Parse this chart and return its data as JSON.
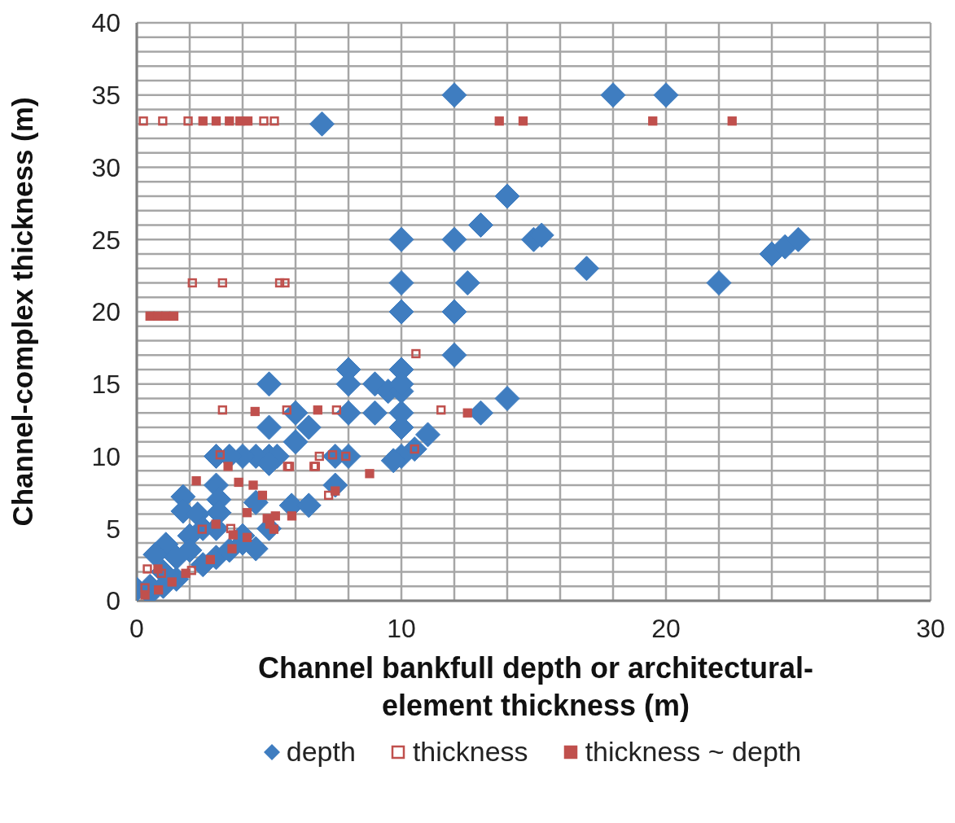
{
  "chart_data": {
    "type": "scatter",
    "xlabel": "Channel bankfull depth or architectural-element thickness (m)",
    "ylabel": "Channel-complex thickness (m)",
    "xlim": [
      0,
      30
    ],
    "ylim": [
      0,
      40
    ],
    "xticks": [
      0,
      {
        "value": 2,
        "label": null
      },
      {
        "value": 4,
        "label": null
      },
      {
        "value": 6,
        "label": null
      },
      {
        "value": 8,
        "label": null
      },
      10,
      {
        "value": 12,
        "label": null
      },
      {
        "value": 14,
        "label": null
      },
      {
        "value": 16,
        "label": null
      },
      {
        "value": 18,
        "label": null
      },
      20,
      {
        "value": 22,
        "label": null
      },
      {
        "value": 24,
        "label": null
      },
      {
        "value": 26,
        "label": null
      },
      {
        "value": 28,
        "label": null
      },
      30
    ],
    "yticks": [
      0,
      {
        "value": 1,
        "label": null
      },
      {
        "value": 2,
        "label": null
      },
      {
        "value": 3,
        "label": null
      },
      {
        "value": 4,
        "label": null
      },
      5,
      {
        "value": 6,
        "label": null
      },
      {
        "value": 7,
        "label": null
      },
      {
        "value": 8,
        "label": null
      },
      {
        "value": 9,
        "label": null
      },
      10,
      {
        "value": 11,
        "label": null
      },
      {
        "value": 12,
        "label": null
      },
      {
        "value": 13,
        "label": null
      },
      {
        "value": 14,
        "label": null
      },
      15,
      {
        "value": 16,
        "label": null
      },
      {
        "value": 17,
        "label": null
      },
      {
        "value": 18,
        "label": null
      },
      {
        "value": 19,
        "label": null
      },
      20,
      {
        "value": 21,
        "label": null
      },
      {
        "value": 22,
        "label": null
      },
      {
        "value": 23,
        "label": null
      },
      {
        "value": 24,
        "label": null
      },
      25,
      {
        "value": 26,
        "label": null
      },
      {
        "value": 27,
        "label": null
      },
      {
        "value": 28,
        "label": null
      },
      {
        "value": 29,
        "label": null
      },
      30,
      {
        "value": 31,
        "label": null
      },
      {
        "value": 32,
        "label": null
      },
      {
        "value": 33,
        "label": null
      },
      {
        "value": 34,
        "label": null
      },
      35,
      {
        "value": 36,
        "label": null
      },
      {
        "value": 37,
        "label": null
      },
      {
        "value": 38,
        "label": null
      },
      {
        "value": 39,
        "label": null
      },
      40
    ],
    "grid": true,
    "legend": "bottom",
    "series": [
      {
        "name": "depth",
        "color": "#3f7dc0",
        "marker": "diamond",
        "x": [
          7,
          12,
          18,
          20,
          14,
          13,
          15,
          15.3,
          10,
          12,
          12.5,
          10,
          17,
          22,
          24,
          24.5,
          25,
          10,
          12,
          12,
          8,
          8,
          10,
          9,
          9.5,
          10,
          10,
          5,
          14,
          13,
          10,
          9,
          8,
          6,
          6.5,
          5,
          10,
          11,
          6,
          10.5,
          10,
          9.7,
          7.5,
          8,
          5,
          5.3,
          4.5,
          4,
          3,
          3.5,
          5,
          7.5,
          3,
          3.1,
          null,
          3.1,
          1.75,
          1.75,
          2.3,
          3.1,
          4.5,
          5.85,
          6.5,
          4.5,
          4,
          3,
          2.5,
          2,
          1.1,
          0.7,
          2,
          3,
          2.5,
          1.5,
          1,
          0.5,
          0,
          0.5,
          1,
          3.5,
          4,
          5,
          1.5
        ],
        "values": [
          33,
          35,
          35,
          35,
          28,
          26,
          25,
          25.3,
          25,
          25,
          22,
          22,
          23,
          22,
          24,
          24.5,
          25,
          20,
          20,
          17,
          16,
          15,
          16,
          15,
          14.5,
          14.5,
          15,
          15,
          14,
          13,
          13,
          13,
          13,
          13,
          12,
          12,
          12,
          11.5,
          11,
          10.5,
          10,
          9.7,
          10,
          10,
          10,
          10,
          10,
          10,
          10,
          10,
          9.5,
          8,
          8,
          7,
          null,
          6.1,
          7.2,
          6.2,
          6,
          6.1,
          6.8,
          6.6,
          6.6,
          3.6,
          4.5,
          5,
          5,
          4.5,
          3.9,
          3.2,
          3.5,
          3,
          2.5,
          1.5,
          1,
          0.5,
          0.8,
          1,
          2,
          3.5,
          4,
          5,
          3
        ]
      },
      {
        "name": "thickness",
        "color": "#c0504d",
        "marker": "square",
        "x": [
          0.25,
          0.98,
          1.94,
          3.3,
          4.8,
          5.2,
          2.1,
          3.24,
          5.4,
          5.6,
          10.55,
          3.24,
          5.67,
          7.55,
          11.5,
          10.5,
          6.9,
          6.7,
          5.7,
          7.25,
          3.15,
          5.77,
          6.75,
          7.4,
          7.9,
          7.65,
          2.47,
          3.55,
          2.87,
          2.07,
          0.93,
          0.4,
          0.31
        ],
        "values": [
          33.2,
          33.2,
          33.2,
          null,
          33.2,
          33.2,
          22,
          22,
          22,
          22,
          17.1,
          13.2,
          13.2,
          13.2,
          13.2,
          10.5,
          10,
          9.3,
          9.3,
          7.3,
          10.1,
          9.3,
          9.3,
          10.1,
          10,
          null,
          4.95,
          5,
          null,
          2.1,
          1.9,
          2.2,
          0.9
        ]
      },
      {
        "name": "thickness ~ depth",
        "color": "#c0504d",
        "marker": "square",
        "x": [
          2.5,
          3,
          3.5,
          3.9,
          4.2,
          13.7,
          14.6,
          19.5,
          22.5,
          0.5,
          0.8,
          1.1,
          1.4,
          4.47,
          6.84,
          12.5,
          8.8,
          7.5,
          3.45,
          2.25,
          3.85,
          4.4,
          4.75,
          4.17,
          2.99,
          3.64,
          4.17,
          4.93,
          5.24,
          5.86,
          3.6,
          5.03,
          5.18,
          2.78,
          1.85,
          1.33,
          0.82,
          0.31,
          0.8
        ],
        "values": [
          33.2,
          33.2,
          33.2,
          33.2,
          33.2,
          33.2,
          33.2,
          33.2,
          33.2,
          19.7,
          19.7,
          19.7,
          19.7,
          13.1,
          13.2,
          13,
          8.8,
          7.6,
          9.3,
          8.3,
          8.2,
          8,
          7.3,
          6.1,
          5.3,
          4.56,
          4.38,
          5.7,
          5.87,
          5.87,
          3.6,
          5.3,
          4.95,
          2.85,
          1.9,
          1.3,
          0.75,
          0.4,
          2.2
        ]
      }
    ]
  }
}
